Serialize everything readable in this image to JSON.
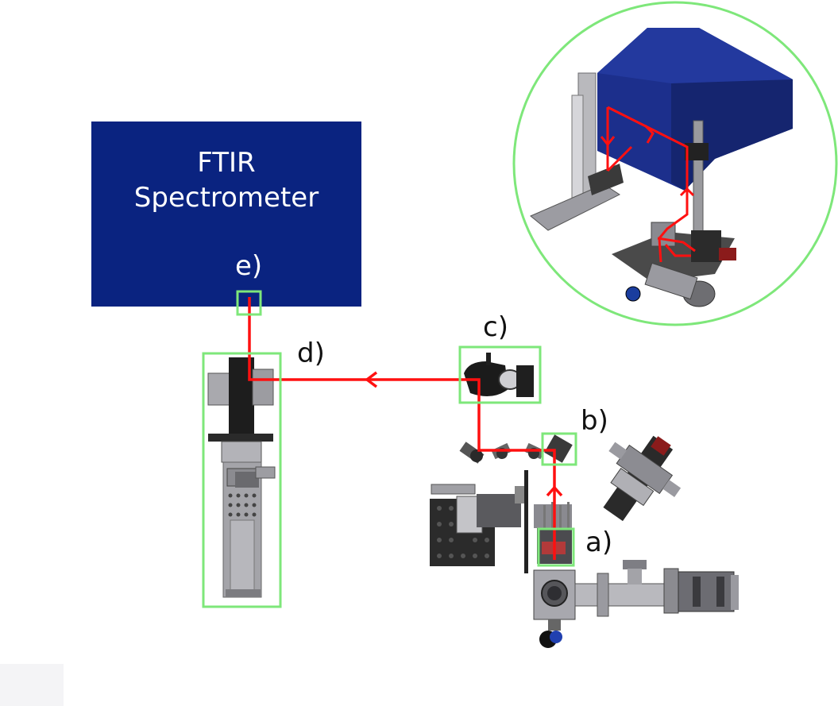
{
  "ftir": {
    "title_line1": "FTIR",
    "title_line2": "Spectrometer"
  },
  "labels": {
    "a": "a)",
    "b": "b)",
    "c": "c)",
    "d": "d)",
    "e": "e)"
  },
  "colors": {
    "beam": "#ff1010",
    "highlight_box": "#7ee77a",
    "spectrometer": "#0a2380",
    "inset_circle": "#7ee77a"
  }
}
